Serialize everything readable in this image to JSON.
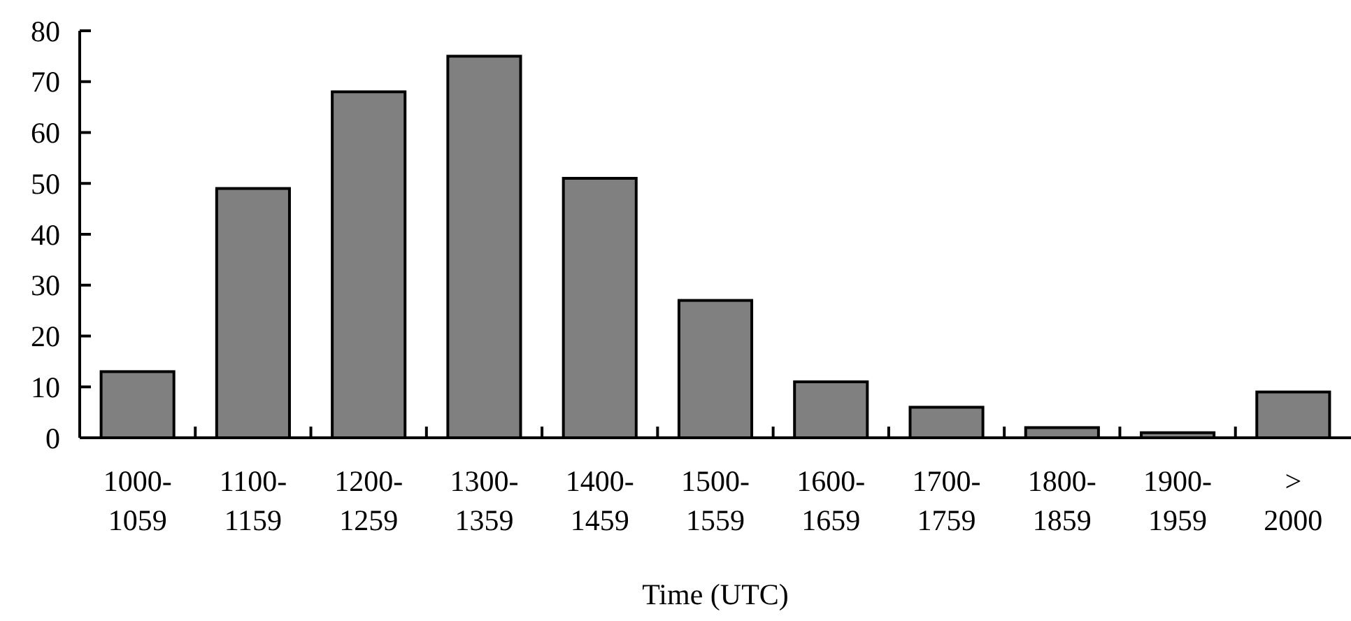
{
  "chart_data": {
    "type": "bar",
    "xlabel": "Time (UTC)",
    "categories": [
      "1000-1059",
      "1100-1159",
      "1200-1259",
      "1300-1359",
      "1400-1459",
      "1500-1559",
      "1600-1659",
      "1700-1759",
      "1800-1859",
      "1900-1959",
      "> 2000"
    ],
    "values": [
      13,
      49,
      68,
      75,
      51,
      27,
      11,
      6,
      2,
      1,
      9
    ],
    "color": "#808080",
    "ylim": [
      0,
      80
    ],
    "yticks": [
      0,
      10,
      20,
      30,
      40,
      50,
      60,
      70,
      80
    ]
  }
}
